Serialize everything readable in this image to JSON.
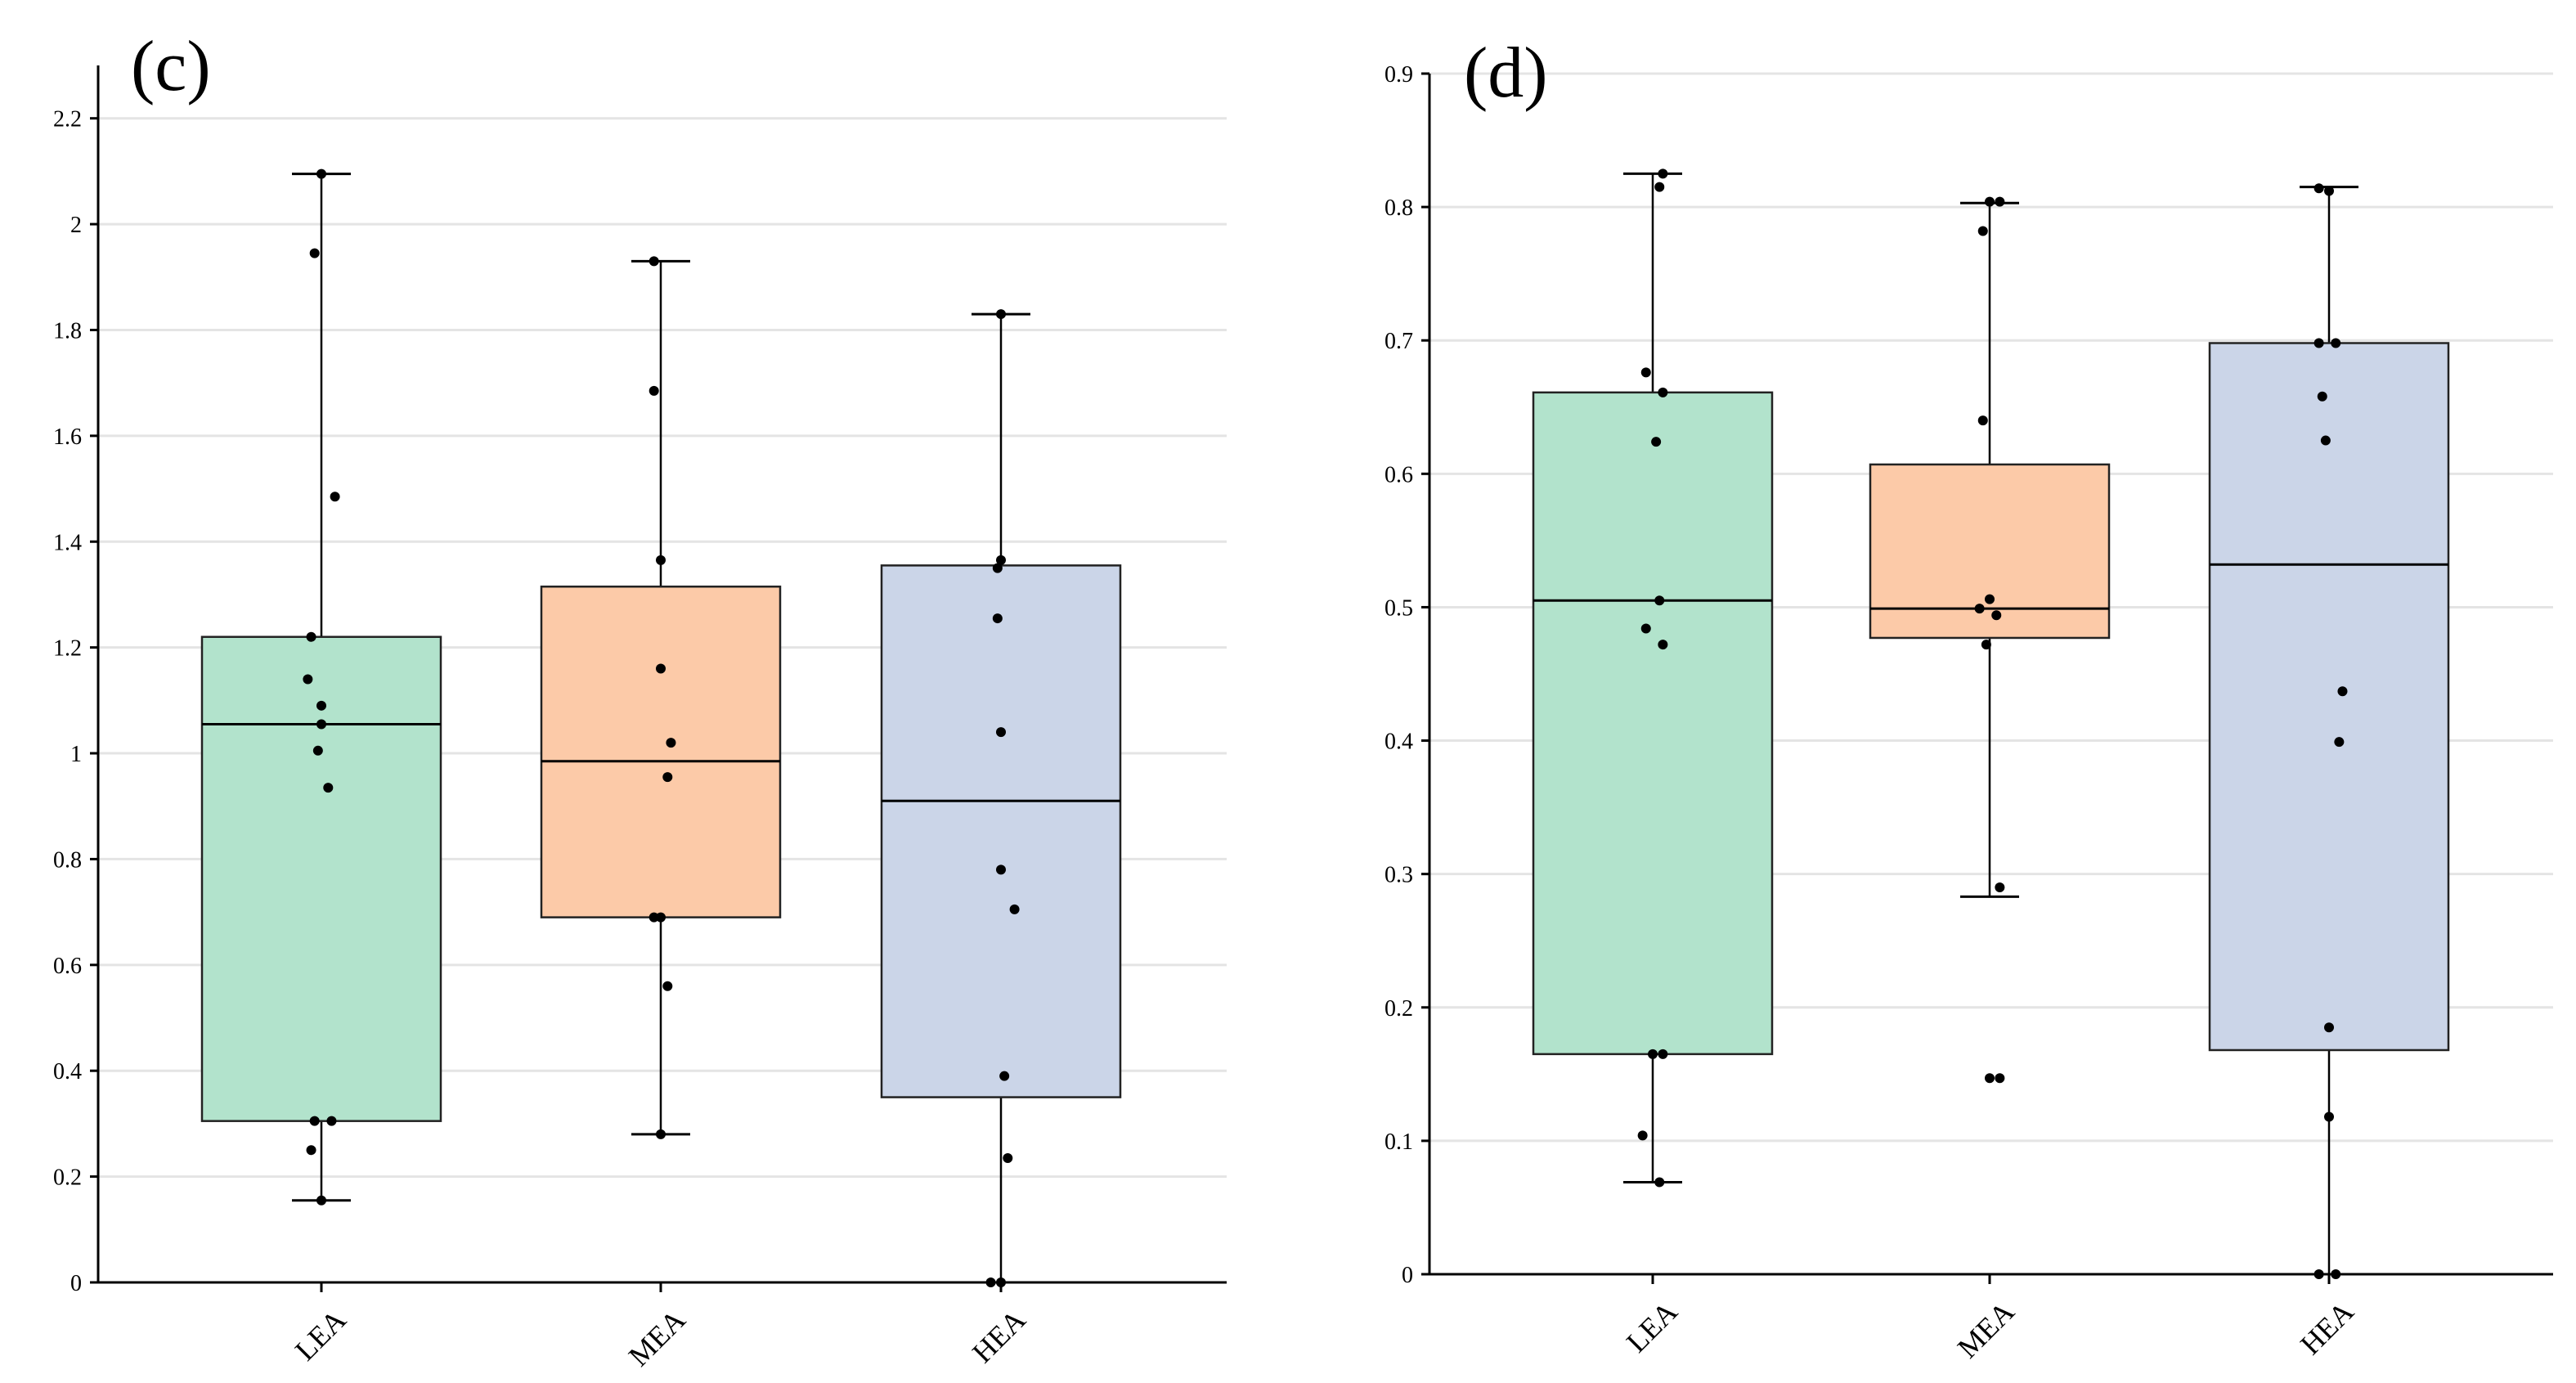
{
  "chart_data": [
    {
      "type": "box",
      "panel_label": "(c)",
      "categories": [
        "LEA",
        "MEA",
        "HEA"
      ],
      "colors": [
        "#b2e3cc",
        "#fccaa8",
        "#cbd5e8"
      ],
      "ylim": [
        0,
        2.3
      ],
      "yticks": [
        0,
        0.2,
        0.4,
        0.6,
        0.8,
        1,
        1.2,
        1.4,
        1.6,
        1.8,
        2,
        2.2
      ],
      "ytick_labels": [
        "0",
        "0.2",
        "0.4",
        "0.6",
        "0.8",
        "1",
        "1.2",
        "1.4",
        "1.6",
        "1.8",
        "2",
        "2.2"
      ],
      "grid": true,
      "boxes": [
        {
          "name": "LEA",
          "min": 0.155,
          "q1": 0.305,
          "median": 1.055,
          "q3": 1.22,
          "max": 2.095
        },
        {
          "name": "MEA",
          "min": 0.28,
          "q1": 0.69,
          "median": 0.985,
          "q3": 1.315,
          "max": 1.93
        },
        {
          "name": "HEA",
          "min": 0.0,
          "q1": 0.35,
          "median": 0.91,
          "q3": 1.355,
          "max": 1.83
        }
      ],
      "points": [
        [
          [
            0,
            2.095
          ],
          [
            -0.02,
            1.945
          ],
          [
            0.04,
            1.485
          ],
          [
            -0.03,
            1.22
          ],
          [
            -0.04,
            1.14
          ],
          [
            0.0,
            1.09
          ],
          [
            0.0,
            1.055
          ],
          [
            -0.01,
            1.005
          ],
          [
            0.02,
            0.935
          ],
          [
            -0.02,
            0.305
          ],
          [
            0.03,
            0.305
          ],
          [
            -0.03,
            0.25
          ],
          [
            0.0,
            0.155
          ]
        ],
        [
          [
            -0.02,
            1.93
          ],
          [
            -0.02,
            1.685
          ],
          [
            0.0,
            1.365
          ],
          [
            0.0,
            1.16
          ],
          [
            0.03,
            1.02
          ],
          [
            0.02,
            0.955
          ],
          [
            -0.02,
            0.69
          ],
          [
            0.0,
            0.69
          ],
          [
            0.02,
            0.56
          ],
          [
            0.0,
            0.28
          ]
        ],
        [
          [
            0.0,
            1.83
          ],
          [
            0.0,
            1.365
          ],
          [
            -0.01,
            1.35
          ],
          [
            -0.01,
            1.255
          ],
          [
            0.0,
            1.04
          ],
          [
            0.0,
            0.78
          ],
          [
            0.04,
            0.705
          ],
          [
            0.01,
            0.39
          ],
          [
            0.02,
            0.235
          ],
          [
            -0.03,
            0.0
          ],
          [
            0.0,
            0.0
          ]
        ]
      ]
    },
    {
      "type": "box",
      "panel_label": "(d)",
      "categories": [
        "LEA",
        "MEA",
        "HEA"
      ],
      "colors": [
        "#b2e3cc",
        "#fccaa8",
        "#cbd5e8"
      ],
      "ylim": [
        0,
        0.9
      ],
      "yticks": [
        0,
        0.1,
        0.2,
        0.3,
        0.4,
        0.5,
        0.6,
        0.7,
        0.8,
        0.9
      ],
      "ytick_labels": [
        "0",
        "0.1",
        "0.2",
        "0.3",
        "0.4",
        "0.5",
        "0.6",
        "0.7",
        "0.8",
        "0.9"
      ],
      "grid": true,
      "boxes": [
        {
          "name": "LEA",
          "min": 0.069,
          "q1": 0.165,
          "median": 0.505,
          "q3": 0.661,
          "max": 0.825
        },
        {
          "name": "MEA",
          "min": 0.283,
          "q1": 0.477,
          "median": 0.499,
          "q3": 0.607,
          "max": 0.803
        },
        {
          "name": "HEA",
          "min": 0.0,
          "q1": 0.168,
          "median": 0.532,
          "q3": 0.698,
          "max": 0.815
        }
      ],
      "points": [
        [
          [
            0.03,
            0.825
          ],
          [
            0.02,
            0.815
          ],
          [
            -0.02,
            0.676
          ],
          [
            0.03,
            0.661
          ],
          [
            0.01,
            0.624
          ],
          [
            0.02,
            0.505
          ],
          [
            -0.02,
            0.484
          ],
          [
            0.03,
            0.472
          ],
          [
            0.0,
            0.165
          ],
          [
            0.03,
            0.165
          ],
          [
            -0.03,
            0.104
          ],
          [
            0.02,
            0.069
          ]
        ],
        [
          [
            0.0,
            0.804
          ],
          [
            0.03,
            0.804
          ],
          [
            -0.02,
            0.782
          ],
          [
            -0.02,
            0.64
          ],
          [
            0.0,
            0.506
          ],
          [
            -0.03,
            0.499
          ],
          [
            0.02,
            0.494
          ],
          [
            -0.01,
            0.472
          ],
          [
            0.03,
            0.29
          ],
          [
            0.0,
            0.147
          ],
          [
            0.03,
            0.147
          ]
        ],
        [
          [
            -0.03,
            0.814
          ],
          [
            0.0,
            0.812
          ],
          [
            -0.03,
            0.698
          ],
          [
            0.02,
            0.698
          ],
          [
            -0.02,
            0.658
          ],
          [
            -0.01,
            0.625
          ],
          [
            0.04,
            0.437
          ],
          [
            0.03,
            0.399
          ],
          [
            0.0,
            0.185
          ],
          [
            0.0,
            0.118
          ],
          [
            -0.03,
            0.0
          ],
          [
            0.02,
            0.0
          ]
        ]
      ]
    }
  ]
}
